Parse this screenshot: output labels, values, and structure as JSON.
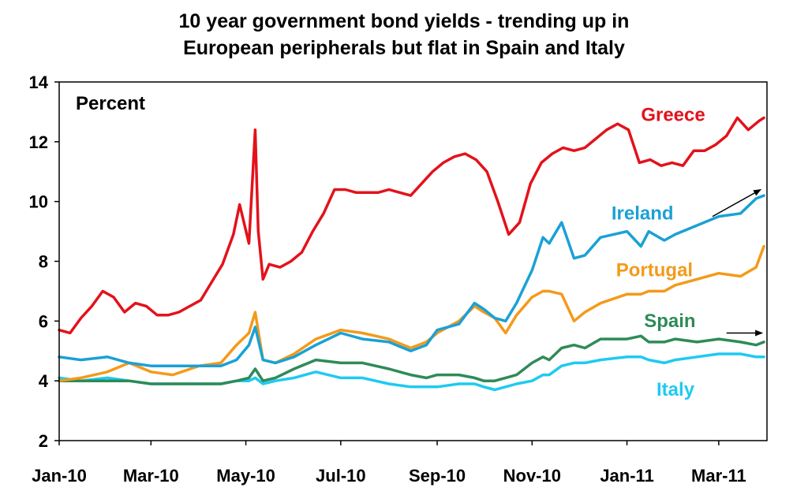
{
  "chart_data": {
    "type": "line",
    "title_line1": "10 year government bond yields - trending up in",
    "title_line2": "European peripherals but flat in Spain and Italy",
    "unit_label": "Percent",
    "ylim": [
      2,
      14
    ],
    "y_ticks": [
      "2",
      "4",
      "6",
      "8",
      "10",
      "12",
      "14"
    ],
    "x_ticks": [
      "Jan-10",
      "Mar-10",
      "May-10",
      "Jul-10",
      "Sep-10",
      "Nov-10",
      "Jan-11",
      "Mar-11"
    ],
    "x_range": [
      "2010-01-01",
      "2011-04-01"
    ],
    "grid": false,
    "series": [
      {
        "name": "Greece",
        "color": "#e3121b",
        "x": [
          "2010-01-01",
          "2010-01-08",
          "2010-01-15",
          "2010-01-22",
          "2010-01-29",
          "2010-02-05",
          "2010-02-12",
          "2010-02-19",
          "2010-02-26",
          "2010-03-05",
          "2010-03-12",
          "2010-03-19",
          "2010-03-26",
          "2010-04-02",
          "2010-04-09",
          "2010-04-16",
          "2010-04-23",
          "2010-04-27",
          "2010-05-03",
          "2010-05-07",
          "2010-05-09",
          "2010-05-12",
          "2010-05-16",
          "2010-05-23",
          "2010-05-30",
          "2010-06-06",
          "2010-06-13",
          "2010-06-20",
          "2010-06-27",
          "2010-07-04",
          "2010-07-11",
          "2010-07-18",
          "2010-07-25",
          "2010-08-01",
          "2010-08-08",
          "2010-08-15",
          "2010-08-22",
          "2010-08-29",
          "2010-09-05",
          "2010-09-12",
          "2010-09-19",
          "2010-09-26",
          "2010-10-03",
          "2010-10-10",
          "2010-10-17",
          "2010-10-24",
          "2010-10-31",
          "2010-11-07",
          "2010-11-14",
          "2010-11-21",
          "2010-11-28",
          "2010-12-05",
          "2010-12-12",
          "2010-12-19",
          "2010-12-26",
          "2011-01-02",
          "2011-01-09",
          "2011-01-16",
          "2011-01-23",
          "2011-01-30",
          "2011-02-06",
          "2011-02-13",
          "2011-02-20",
          "2011-02-27",
          "2011-03-06",
          "2011-03-13",
          "2011-03-20",
          "2011-03-27",
          "2011-03-30"
        ],
        "values": [
          5.7,
          5.6,
          6.1,
          6.5,
          7.0,
          6.8,
          6.3,
          6.6,
          6.5,
          6.2,
          6.2,
          6.3,
          6.5,
          6.7,
          7.3,
          7.9,
          8.9,
          9.9,
          8.6,
          12.4,
          9.0,
          7.4,
          7.9,
          7.8,
          8.0,
          8.3,
          9.0,
          9.6,
          10.4,
          10.4,
          10.3,
          10.3,
          10.3,
          10.4,
          10.3,
          10.2,
          10.6,
          11.0,
          11.3,
          11.5,
          11.6,
          11.4,
          11.0,
          10.0,
          8.9,
          9.3,
          10.6,
          11.3,
          11.6,
          11.8,
          11.7,
          11.8,
          12.1,
          12.4,
          12.6,
          12.4,
          11.3,
          11.4,
          11.2,
          11.3,
          11.2,
          11.7,
          11.7,
          11.9,
          12.2,
          12.8,
          12.4,
          12.7,
          12.8
        ]
      },
      {
        "name": "Ireland",
        "color": "#1aa1d6",
        "x": [
          "2010-01-01",
          "2010-01-15",
          "2010-02-01",
          "2010-02-15",
          "2010-03-01",
          "2010-03-15",
          "2010-04-01",
          "2010-04-15",
          "2010-04-25",
          "2010-05-03",
          "2010-05-07",
          "2010-05-12",
          "2010-05-20",
          "2010-06-01",
          "2010-06-15",
          "2010-07-01",
          "2010-07-15",
          "2010-08-01",
          "2010-08-15",
          "2010-08-25",
          "2010-09-01",
          "2010-09-15",
          "2010-09-25",
          "2010-10-01",
          "2010-10-08",
          "2010-10-15",
          "2010-10-22",
          "2010-11-01",
          "2010-11-08",
          "2010-11-12",
          "2010-11-20",
          "2010-11-28",
          "2010-12-05",
          "2010-12-15",
          "2011-01-01",
          "2011-01-10",
          "2011-01-15",
          "2011-01-25",
          "2011-02-01",
          "2011-02-15",
          "2011-03-01",
          "2011-03-15",
          "2011-03-25",
          "2011-03-30"
        ],
        "values": [
          4.8,
          4.7,
          4.8,
          4.6,
          4.5,
          4.5,
          4.5,
          4.5,
          4.7,
          5.2,
          5.8,
          4.7,
          4.6,
          4.8,
          5.2,
          5.6,
          5.4,
          5.3,
          5.0,
          5.2,
          5.7,
          5.9,
          6.6,
          6.4,
          6.1,
          6.0,
          6.6,
          7.7,
          8.8,
          8.6,
          9.3,
          8.1,
          8.2,
          8.8,
          9.0,
          8.5,
          9.0,
          8.7,
          8.9,
          9.2,
          9.5,
          9.6,
          10.1,
          10.2
        ]
      },
      {
        "name": "Portugal",
        "color": "#f39a1b",
        "x": [
          "2010-01-01",
          "2010-01-15",
          "2010-02-01",
          "2010-02-15",
          "2010-03-01",
          "2010-03-15",
          "2010-04-01",
          "2010-04-15",
          "2010-04-25",
          "2010-05-03",
          "2010-05-07",
          "2010-05-12",
          "2010-05-20",
          "2010-06-01",
          "2010-06-15",
          "2010-07-01",
          "2010-07-15",
          "2010-08-01",
          "2010-08-15",
          "2010-08-25",
          "2010-09-01",
          "2010-09-15",
          "2010-09-25",
          "2010-10-01",
          "2010-10-08",
          "2010-10-15",
          "2010-10-22",
          "2010-11-01",
          "2010-11-08",
          "2010-11-12",
          "2010-11-20",
          "2010-11-28",
          "2010-12-05",
          "2010-12-15",
          "2011-01-01",
          "2011-01-10",
          "2011-01-15",
          "2011-01-25",
          "2011-02-01",
          "2011-02-15",
          "2011-03-01",
          "2011-03-15",
          "2011-03-25",
          "2011-03-30"
        ],
        "values": [
          4.0,
          4.1,
          4.3,
          4.6,
          4.3,
          4.2,
          4.5,
          4.6,
          5.2,
          5.6,
          6.3,
          4.7,
          4.6,
          4.9,
          5.4,
          5.7,
          5.6,
          5.4,
          5.1,
          5.3,
          5.6,
          6.0,
          6.5,
          6.3,
          6.1,
          5.6,
          6.2,
          6.8,
          7.0,
          7.0,
          6.9,
          6.0,
          6.3,
          6.6,
          6.9,
          6.9,
          7.0,
          7.0,
          7.2,
          7.4,
          7.6,
          7.5,
          7.8,
          8.5
        ]
      },
      {
        "name": "Spain",
        "color": "#2e8b57",
        "x": [
          "2010-01-01",
          "2010-01-15",
          "2010-02-01",
          "2010-02-15",
          "2010-03-01",
          "2010-03-15",
          "2010-04-01",
          "2010-04-15",
          "2010-04-25",
          "2010-05-03",
          "2010-05-07",
          "2010-05-12",
          "2010-05-20",
          "2010-06-01",
          "2010-06-15",
          "2010-07-01",
          "2010-07-15",
          "2010-08-01",
          "2010-08-15",
          "2010-08-25",
          "2010-09-01",
          "2010-09-15",
          "2010-09-25",
          "2010-10-01",
          "2010-10-08",
          "2010-10-15",
          "2010-10-22",
          "2010-11-01",
          "2010-11-08",
          "2010-11-12",
          "2010-11-20",
          "2010-11-28",
          "2010-12-05",
          "2010-12-15",
          "2011-01-01",
          "2011-01-10",
          "2011-01-15",
          "2011-01-25",
          "2011-02-01",
          "2011-02-15",
          "2011-03-01",
          "2011-03-15",
          "2011-03-25",
          "2011-03-30"
        ],
        "values": [
          4.0,
          4.0,
          4.0,
          4.0,
          3.9,
          3.9,
          3.9,
          3.9,
          4.0,
          4.1,
          4.4,
          4.0,
          4.1,
          4.4,
          4.7,
          4.6,
          4.6,
          4.4,
          4.2,
          4.1,
          4.2,
          4.2,
          4.1,
          4.0,
          4.0,
          4.1,
          4.2,
          4.6,
          4.8,
          4.7,
          5.1,
          5.2,
          5.1,
          5.4,
          5.4,
          5.5,
          5.3,
          5.3,
          5.4,
          5.3,
          5.4,
          5.3,
          5.2,
          5.3
        ]
      },
      {
        "name": "Italy",
        "color": "#1fcaf0",
        "x": [
          "2010-01-01",
          "2010-01-15",
          "2010-02-01",
          "2010-02-15",
          "2010-03-01",
          "2010-03-15",
          "2010-04-01",
          "2010-04-15",
          "2010-04-25",
          "2010-05-03",
          "2010-05-07",
          "2010-05-12",
          "2010-05-20",
          "2010-06-01",
          "2010-06-15",
          "2010-07-01",
          "2010-07-15",
          "2010-08-01",
          "2010-08-15",
          "2010-08-25",
          "2010-09-01",
          "2010-09-15",
          "2010-09-25",
          "2010-10-01",
          "2010-10-08",
          "2010-10-15",
          "2010-10-22",
          "2010-11-01",
          "2010-11-08",
          "2010-11-12",
          "2010-11-20",
          "2010-11-28",
          "2010-12-05",
          "2010-12-15",
          "2011-01-01",
          "2011-01-10",
          "2011-01-15",
          "2011-01-25",
          "2011-02-01",
          "2011-02-15",
          "2011-03-01",
          "2011-03-15",
          "2011-03-25",
          "2011-03-30"
        ],
        "values": [
          4.1,
          4.0,
          4.1,
          4.0,
          3.9,
          3.9,
          3.9,
          3.9,
          4.0,
          4.0,
          4.1,
          3.9,
          4.0,
          4.1,
          4.3,
          4.1,
          4.1,
          3.9,
          3.8,
          3.8,
          3.8,
          3.9,
          3.9,
          3.8,
          3.7,
          3.8,
          3.9,
          4.0,
          4.2,
          4.2,
          4.5,
          4.6,
          4.6,
          4.7,
          4.8,
          4.8,
          4.7,
          4.6,
          4.7,
          4.8,
          4.9,
          4.9,
          4.8,
          4.8
        ]
      }
    ]
  }
}
